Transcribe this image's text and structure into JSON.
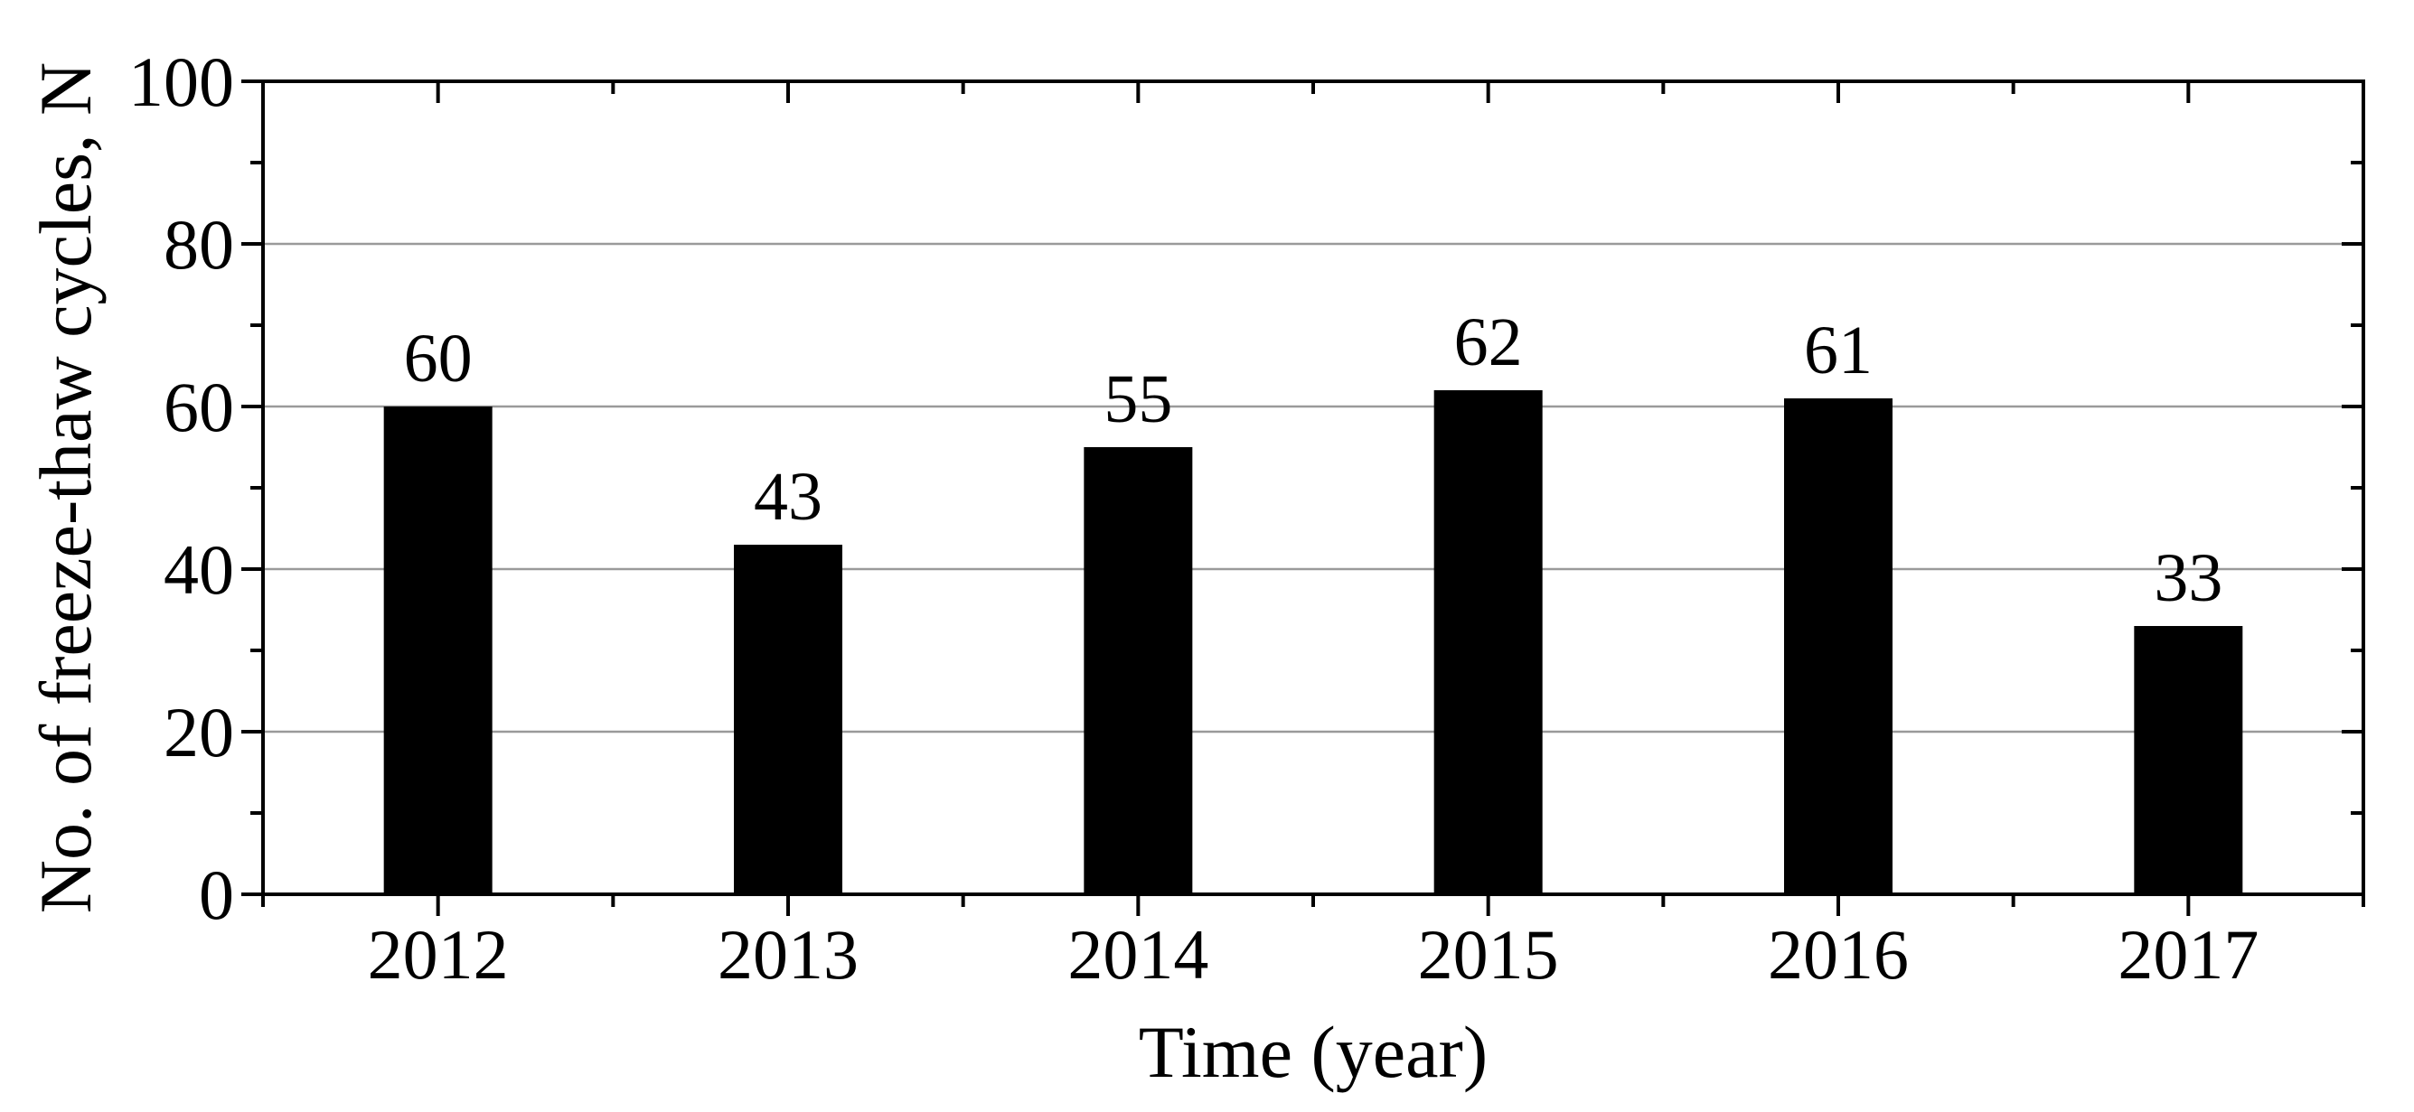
{
  "chart_data": {
    "type": "bar",
    "title": "",
    "xlabel": "Time (year)",
    "ylabel": "No. of freeze-thaw cycles, N",
    "categories": [
      "2012",
      "2013",
      "2014",
      "2015",
      "2016",
      "2017"
    ],
    "values": [
      60,
      43,
      55,
      62,
      61,
      33
    ],
    "value_labels": [
      "60",
      "43",
      "55",
      "62",
      "61",
      "33"
    ],
    "ylim": [
      0,
      100
    ],
    "y_major_ticks": [
      0,
      20,
      40,
      60,
      80,
      100
    ],
    "y_major_tick_labels": [
      "0",
      "20",
      "40",
      "60",
      "80",
      "100"
    ],
    "y_minor_ticks": [
      10,
      30,
      50,
      70,
      90
    ],
    "gridline_values": [
      20,
      40,
      60,
      80
    ],
    "grid": "horizontal-major-only",
    "legend_position": "none",
    "bar_color": "#000000",
    "axis_color": "#000000",
    "gridline_color": "#9a9a9a",
    "background_color": "#ffffff"
  }
}
